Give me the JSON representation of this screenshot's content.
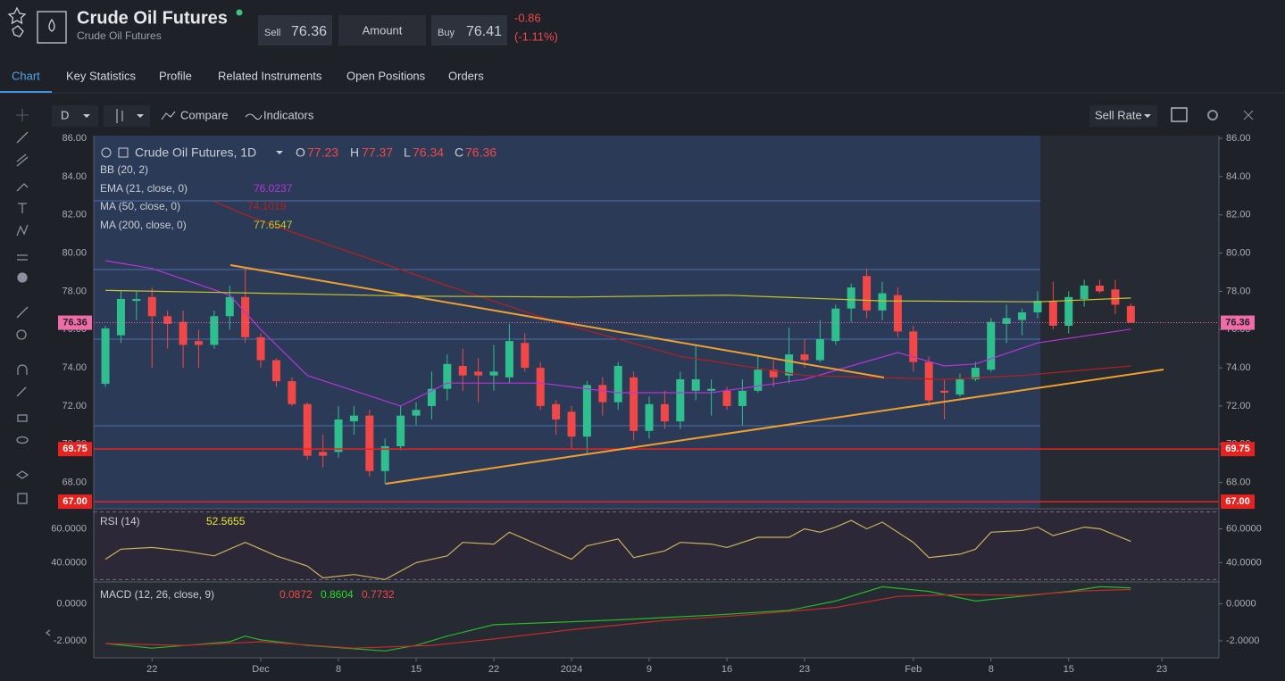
{
  "header": {
    "title": "Crude Oil Futures",
    "subtitle": "Crude Oil Futures",
    "sell_label": "Sell",
    "sell": 76.36,
    "amount": "Amount",
    "buy_label": "Buy",
    "buy": 76.41,
    "change": -0.86,
    "change_percent": "(-1.11%)"
  },
  "tabs": [
    "Chart",
    "Key Statistics",
    "Profile",
    "Related Instruments",
    "Open Positions",
    "Orders"
  ],
  "toolbar": {
    "interval": "D",
    "compare": "Compare",
    "indicators": "Indicators",
    "price_type": "Sell Rate"
  },
  "chart_data": [
    {
      "type": "candlestick",
      "title": "Crude Oil Futures, 1D",
      "legend_ohlc": [
        {
          "label": "O",
          "value": 77.23
        },
        {
          "label": "H",
          "value": 77.37
        },
        {
          "label": "L",
          "value": 76.34
        },
        {
          "label": "C",
          "value": 76.36
        }
      ],
      "up_color": "#2fbf8f",
      "down_color": "#f04848",
      "open": [
        73.16,
        75.7,
        77.5,
        77.7,
        76.7,
        76.4,
        75.4,
        75.2,
        76.7,
        77.7,
        75.6,
        74.4,
        73.3,
        72.1,
        69.6,
        69.6,
        71.2,
        71.5,
        68.6,
        69.9,
        71.5,
        72.0,
        72.9,
        74.1,
        73.8,
        73.6,
        73.5,
        75.3,
        74.0,
        72.1,
        71.7,
        70.4,
        73.1,
        72.2,
        73.5,
        70.7,
        72.1,
        71.2,
        72.8,
        72.8,
        72.8,
        72.0,
        72.8,
        73.9,
        73.6,
        74.7,
        74.4,
        75.4,
        77.1,
        78.8,
        77.0,
        77.8,
        75.9,
        74.3,
        72.8,
        72.6,
        73.4,
        73.9,
        76.3,
        76.5,
        76.9,
        77.5,
        76.2,
        77.6,
        78.3,
        78.1,
        77.23
      ],
      "high": [
        76.2,
        78.0,
        78.0,
        78.2,
        77.0,
        77.0,
        76.0,
        77.0,
        78.3,
        79.2,
        75.8,
        74.5,
        73.5,
        72.2,
        70.5,
        72.0,
        72.0,
        71.8,
        70.3,
        72.0,
        72.2,
        73.8,
        74.7,
        75.0,
        74.5,
        75.2,
        76.3,
        75.8,
        74.3,
        72.3,
        72.0,
        73.3,
        73.5,
        74.3,
        73.8,
        72.5,
        72.8,
        73.8,
        75.2,
        73.4,
        73.0,
        73.4,
        74.6,
        74.4,
        76.1,
        75.5,
        76.5,
        77.3,
        78.4,
        79.2,
        78.5,
        78.2,
        76.2,
        74.6,
        73.4,
        73.7,
        74.3,
        76.6,
        77.3,
        77.1,
        78.0,
        78.5,
        78.0,
        78.6,
        78.6,
        78.6,
        77.37
      ],
      "low": [
        73.0,
        75.3,
        76.5,
        74.0,
        75.0,
        74.0,
        74.0,
        75.0,
        76.0,
        75.3,
        74.0,
        73.0,
        72.0,
        69.2,
        68.8,
        69.3,
        70.5,
        68.3,
        67.9,
        69.7,
        71.0,
        71.3,
        72.3,
        72.8,
        72.2,
        72.8,
        73.2,
        73.8,
        71.8,
        70.5,
        69.8,
        69.5,
        71.5,
        71.8,
        70.2,
        70.3,
        70.8,
        70.8,
        72.3,
        71.5,
        71.8,
        71.0,
        72.7,
        73.0,
        73.2,
        74.0,
        74.3,
        75.2,
        76.4,
        76.6,
        76.5,
        75.6,
        73.8,
        72.0,
        71.3,
        72.5,
        73.3,
        73.8,
        75.3,
        75.7,
        76.6,
        76.0,
        75.8,
        77.2,
        77.9,
        76.8,
        76.34
      ],
      "close": [
        76.06,
        77.6,
        77.6,
        76.7,
        76.3,
        75.2,
        75.2,
        76.7,
        77.7,
        75.6,
        74.4,
        73.3,
        72.1,
        69.4,
        69.4,
        71.3,
        71.5,
        68.6,
        69.9,
        71.5,
        71.8,
        72.9,
        74.2,
        73.6,
        73.6,
        73.8,
        75.4,
        74.0,
        72.0,
        71.3,
        70.4,
        73.1,
        72.2,
        74.1,
        70.7,
        72.1,
        71.2,
        73.4,
        73.4,
        72.9,
        72.0,
        72.8,
        73.9,
        73.5,
        74.7,
        74.4,
        75.5,
        77.1,
        78.2,
        77.0,
        77.9,
        75.9,
        74.3,
        72.3,
        72.7,
        73.4,
        74.0,
        76.4,
        76.6,
        76.9,
        77.5,
        76.2,
        77.7,
        78.3,
        78.0,
        77.3,
        76.36
      ],
      "last": 76.36,
      "last_color": "#f06ca8",
      "xlim": [
        -0.75,
        71.67
      ],
      "ylim": [
        66.63,
        86.14
      ],
      "xticks": [
        {
          "value": 3,
          "label": "22"
        },
        {
          "value": 10,
          "label": "Dec"
        },
        {
          "value": 15,
          "label": "8"
        },
        {
          "value": 20,
          "label": "15"
        },
        {
          "value": 25,
          "label": "22"
        },
        {
          "value": 30,
          "label": "2024"
        },
        {
          "value": 35,
          "label": "9"
        },
        {
          "value": 40,
          "label": "16"
        },
        {
          "value": 45,
          "label": "23"
        },
        {
          "value": 52,
          "label": "Feb"
        },
        {
          "value": 57,
          "label": "8"
        },
        {
          "value": 62,
          "label": "15"
        },
        {
          "value": 68,
          "label": "23"
        }
      ],
      "yticks": [
        {
          "value": 68,
          "label": "68.00"
        },
        {
          "value": 70,
          "label": "70.00"
        },
        {
          "value": 72,
          "label": "72.00"
        },
        {
          "value": 74,
          "label": "74.00"
        },
        {
          "value": 76,
          "label": "76.00"
        },
        {
          "value": 78,
          "label": "78.00"
        },
        {
          "value": 80,
          "label": "80.00"
        },
        {
          "value": 82,
          "label": "82.00"
        },
        {
          "value": 84,
          "label": "84.00"
        },
        {
          "value": 86,
          "label": "86.00"
        }
      ],
      "price_lines": [
        69.75,
        {
          "value": 67,
          "label": "67.00"
        }
      ],
      "price_line_color": "#e8231f",
      "indicators": [
        {
          "name": "BB (20, 2)"
        },
        {
          "name": "EMA (21, close, 0)",
          "value": 76.0237,
          "color": "#b634d8",
          "x": [
            0,
            3,
            8,
            10,
            13,
            19,
            22,
            28,
            33,
            39,
            45,
            51,
            54,
            56,
            60,
            66
          ],
          "values": [
            79.6,
            79.2,
            77.8,
            76.0,
            73.6,
            72.0,
            73.2,
            73.2,
            72.7,
            72.7,
            73.4,
            74.8,
            74.1,
            74.2,
            75.3,
            76.02
          ]
        },
        {
          "name": "MA (50, close, 0)",
          "value": 74.1019,
          "color": "#b3201f",
          "x": [
            7,
            9,
            12,
            22,
            29,
            37,
            45,
            54,
            59,
            66
          ],
          "values": [
            82.7,
            82.0,
            81.1,
            78.3,
            76.4,
            74.6,
            73.6,
            73.4,
            73.6,
            74.1
          ]
        },
        {
          "name": "MA (200, close, 0)",
          "value": 77.6547,
          "color": "#c8c82a",
          "x": [
            0,
            10,
            20,
            30,
            40,
            50,
            60,
            66
          ],
          "values": [
            78.05,
            77.9,
            77.75,
            77.7,
            77.8,
            77.5,
            77.45,
            77.65
          ]
        }
      ]
    },
    {
      "type": "line",
      "title": "RSI (14)",
      "value": 52.5655,
      "value_color": "#e6e633",
      "color": "#c8b45a",
      "x": [
        0,
        1,
        3,
        5,
        7,
        9,
        11,
        13,
        14,
        16,
        18,
        20,
        22,
        23,
        25,
        26,
        28,
        30,
        31,
        33,
        34,
        36,
        37,
        39,
        40,
        42,
        44,
        45,
        46,
        47,
        48,
        49,
        50,
        52,
        53,
        55,
        56,
        57,
        59,
        60,
        61,
        63,
        64,
        66
      ],
      "values": [
        42,
        48,
        49,
        47,
        44,
        52,
        44,
        38,
        31,
        33,
        30,
        40,
        44,
        52,
        51,
        58,
        50,
        42,
        50,
        54,
        43,
        47,
        52,
        51,
        49,
        55,
        55,
        60,
        58,
        61,
        65,
        60,
        64,
        52,
        43,
        45,
        48,
        58,
        59,
        61,
        56,
        61,
        60,
        52.57
      ],
      "levels": [
        30,
        70
      ],
      "ylim": [
        28.6,
        71.9
      ],
      "yticks": [
        {
          "value": 40,
          "label": "40.0000"
        },
        {
          "value": 60,
          "label": "60.0000"
        }
      ]
    },
    {
      "type": "line",
      "title": "MACD (12, 26, close, 9)",
      "legend_values": [
        {
          "value": 0.0872,
          "color": "#f04848"
        },
        {
          "value": 0.8604,
          "color": "#2bd92b"
        },
        {
          "value": 0.7732,
          "color": "#f04848"
        }
      ],
      "series": [
        {
          "color": "#28b828",
          "x": [
            0,
            3,
            8,
            9,
            10,
            13,
            18,
            20,
            22,
            25,
            30,
            33,
            39,
            44,
            47,
            50,
            53,
            56,
            59,
            62,
            64,
            66
          ],
          "values": [
            -2.15,
            -2.4,
            -2.05,
            -1.75,
            -1.95,
            -2.25,
            -2.55,
            -2.25,
            -1.75,
            -1.13,
            -0.97,
            -0.87,
            -0.62,
            -0.36,
            0.15,
            0.92,
            0.67,
            0.15,
            0.41,
            0.67,
            0.92,
            0.86
          ]
        },
        {
          "color": "#c42a2a",
          "x": [
            0,
            5,
            10,
            16,
            21,
            25,
            30,
            36,
            41,
            47,
            51,
            55,
            59,
            63,
            66
          ],
          "values": [
            -2.15,
            -2.25,
            -2.05,
            -2.4,
            -2.25,
            -1.9,
            -1.4,
            -0.9,
            -0.62,
            -0.2,
            0.4,
            0.5,
            0.45,
            0.7,
            0.77
          ]
        }
      ],
      "ylim": [
        -2.92,
        1.18
      ],
      "yticks": [
        {
          "value": 0,
          "label": "0.0000"
        },
        {
          "value": -2,
          "label": "-2.0000"
        }
      ]
    }
  ]
}
